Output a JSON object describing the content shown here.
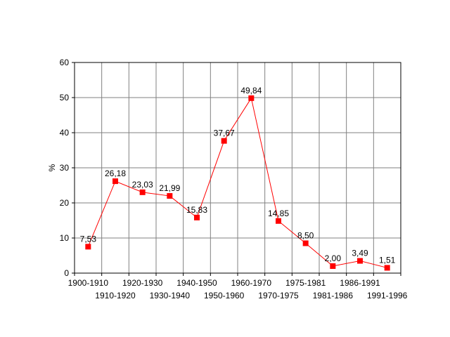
{
  "chart_data": {
    "type": "line",
    "title": "",
    "xlabel": "",
    "ylabel": "%",
    "ylim": [
      0,
      60
    ],
    "yticks": [
      0,
      10,
      20,
      30,
      40,
      50,
      60
    ],
    "grid": true,
    "legend": "none",
    "categories": [
      "1900-1910",
      "1910-1920",
      "1920-1930",
      "1930-1940",
      "1940-1950",
      "1950-1960",
      "1960-1970",
      "1970-1975",
      "1975-1981",
      "1981-1986",
      "1986-1991",
      "1991-1996"
    ],
    "values": [
      7.53,
      26.18,
      23.03,
      21.99,
      15.83,
      37.67,
      49.84,
      14.85,
      8.5,
      2.0,
      3.49,
      1.51
    ],
    "data_labels": [
      "7,53",
      "26,18",
      "23,03",
      "21,99",
      "15,83",
      "37,67",
      "49,84",
      "14,85",
      "8,50",
      "2,00",
      "3,49",
      "1,51"
    ],
    "series_color": "#ff0000",
    "grid_color": "#808080"
  }
}
